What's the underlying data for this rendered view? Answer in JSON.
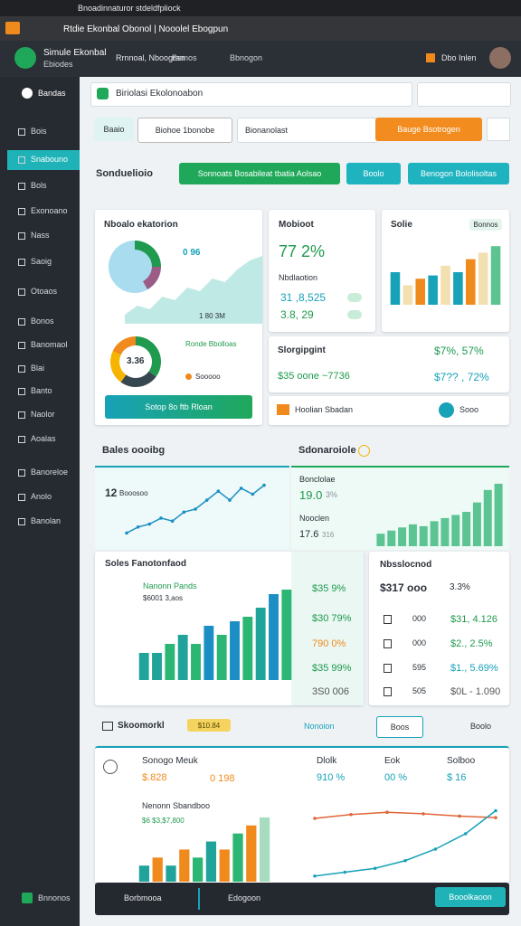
{
  "browser": {
    "tab": "Bnoadinnaturor stdeldfpliock",
    "address": "Rtdie Ekonbal Obonol | Nooolel Ebogpun"
  },
  "header": {
    "app": "Simule Ekonbal",
    "app_sub": "Ebiodes",
    "nav": [
      "Rrnnoal, Nboogran",
      "Bsmos",
      "Bbnogon"
    ],
    "user": "Dbo Inlen"
  },
  "sidebar": {
    "top": "Bandas",
    "items": [
      "Bois",
      "Snabouno",
      "Bols",
      "Exonoano",
      "Nass",
      "Saoig",
      "Otoaos",
      "Bonos",
      "Banomaol",
      "Blai",
      "Banto",
      "Naolor",
      "Aoalas",
      "Banoreloe",
      "Anolo",
      "Banolan"
    ],
    "bottom": "Bnnonos"
  },
  "search": "Biriolasi Ekolonoabon",
  "tabs": [
    "Baaio",
    "Biohoe 1bonobe"
  ],
  "filter": "Bionanolast",
  "action": "Bauge Bsotrogen",
  "section1": {
    "title": "Sonduelioio",
    "buttons": [
      "Sonnoats Bosabileat tbatia Aolsao",
      "Boolo",
      "Benogon Bololisoltas"
    ]
  },
  "overview": {
    "title": "Nboalo ekatorion",
    "badge": "0 96",
    "footnote": "1 80 3M",
    "chart": {
      "type": "area",
      "values": [
        1,
        2,
        1.6,
        3,
        2.6,
        4,
        3.6,
        5,
        4.6,
        6,
        7,
        7.5
      ],
      "ylim": [
        0,
        8
      ],
      "color": "#bfe9e4"
    },
    "donut": {
      "center": "3.36",
      "values": [
        35,
        25,
        22,
        18
      ],
      "colors": [
        "#1f9a4e",
        "#37474f",
        "#f4b400",
        "#f08a1c"
      ]
    },
    "legend": [
      "Ronde Bbolloas",
      "Sooooo"
    ],
    "button": "Sotop 8o ftb Rloan"
  },
  "mobioot": {
    "title": "Mobioot",
    "value": "77 2%",
    "label": "Nbdlaotion",
    "rows": [
      "31 ,8,525",
      "3.8, 29"
    ]
  },
  "solie": {
    "title": "Solie",
    "badge": "Bonnos",
    "chart": {
      "type": "bar",
      "values": [
        5,
        3,
        4,
        4.5,
        6,
        5,
        7,
        8,
        9
      ],
      "ylim": [
        0,
        10
      ],
      "colors": [
        "#17a2b8",
        "#f3e0b0",
        "#f08a1c",
        "#17a2b8",
        "#f3e0b0",
        "#17a2b8",
        "#f08a1c",
        "#f3e0b0",
        "#5cc493"
      ]
    }
  },
  "slorg": {
    "title": "Slorgipgint",
    "value": "$7%, 57%",
    "row": "$35 oone ~7736",
    "row_value": "$7?? , 72%"
  },
  "hoolian": {
    "label": "Hoolian Sbadan",
    "action": "Sooo"
  },
  "section2": {
    "left": "Bales oooibg",
    "right": "Sdonaroiole"
  },
  "sales": {
    "value": "12",
    "label": "Booosoo",
    "chart": {
      "type": "line",
      "values": [
        1,
        2,
        2.5,
        3.5,
        3,
        4.5,
        5,
        6.5,
        8,
        6.5,
        8.5,
        7.5,
        9
      ],
      "ylim": [
        0,
        10
      ],
      "color": "#1b8fc4"
    }
  },
  "bonclolae": {
    "title": "Bonclolae",
    "value": "19.0",
    "pct": "3%",
    "label": "Nooclen",
    "value2": "17.6",
    "sub2": "316",
    "chart": {
      "type": "bar",
      "values": [
        2,
        2.5,
        3,
        3.5,
        3.2,
        4,
        4.5,
        5,
        5.5,
        7,
        9,
        10
      ],
      "ylim": [
        0,
        11
      ],
      "color": "#5cc493"
    }
  },
  "soles": {
    "title": "Soles Fanotonfaod",
    "sub": "Nanonn Pands",
    "sub2": "$6001 3,aos",
    "values": [
      "$35 9%",
      "$30 79%",
      "790 0%",
      "$35 99%",
      "3S0 006"
    ],
    "chart": {
      "type": "bar",
      "values": [
        3,
        3,
        4,
        5,
        4,
        6,
        5,
        6.5,
        7,
        8,
        9.5,
        10
      ],
      "ylim": [
        0,
        11
      ],
      "colors": [
        "#1fa39a",
        "#1fa39a",
        "#2bb673",
        "#1fa39a",
        "#2bb673",
        "#1b8fc4",
        "#2bb673",
        "#1b8fc4",
        "#2bb673",
        "#1fa39a",
        "#1b8fc4",
        "#2bb673"
      ]
    }
  },
  "nbss": {
    "title": "Nbsslocnod",
    "value": "$317 ooo",
    "pct": "3.3%",
    "rows": [
      [
        "000",
        "$31, 4.126"
      ],
      [
        "000",
        "$2., 2.5%"
      ],
      [
        "595",
        "$1., 5.69%"
      ],
      [
        "505",
        "$0L - 1.090"
      ]
    ]
  },
  "section3": {
    "title": "Skoomorkl",
    "badge": "$10.84",
    "link": "Nonoion",
    "button": "Boos",
    "extra": "Boolo"
  },
  "summary": {
    "items": [
      [
        "Sonogo Meuk",
        "$.828"
      ],
      [
        "Dlolk",
        "910 %"
      ],
      [
        "Eok",
        "00 %"
      ],
      [
        "Solboo",
        "$ 16"
      ]
    ],
    "extra": "0 198",
    "bars_title": "Nenonn Sbandboo",
    "bars_sub": "$6 $3,$7,800"
  },
  "nenonn": {
    "chart": {
      "type": "bar",
      "values": [
        2,
        3,
        2,
        4,
        3,
        5,
        4,
        6,
        7,
        8
      ],
      "ylim": [
        0,
        9
      ],
      "colors": [
        "#1fa39a",
        "#f08a1c",
        "#1fa39a",
        "#f08a1c",
        "#2bb673",
        "#1fa39a",
        "#f08a1c",
        "#2bb673",
        "#f08a1c",
        "#a8dcc0"
      ]
    }
  },
  "trend": {
    "chart": {
      "type": "line",
      "ylim": [
        0,
        10
      ],
      "series": [
        {
          "color": "#e0653a",
          "values": [
            8,
            8.5,
            8.8,
            8.6,
            8.3,
            8.1
          ]
        },
        {
          "color": "#17a2b8",
          "values": [
            0.5,
            1,
            1.5,
            2.5,
            4,
            6,
            9
          ]
        }
      ]
    }
  },
  "footer": {
    "left": "Borbmooa",
    "middle": "Edogoon",
    "button": "Booolkaoon"
  }
}
